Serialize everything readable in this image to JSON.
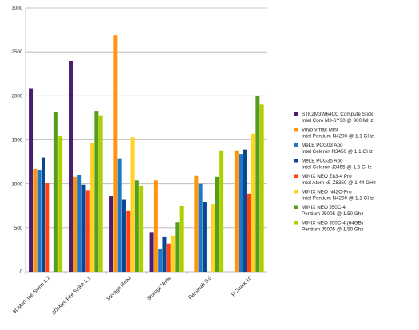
{
  "chart_data": {
    "type": "bar",
    "title": "",
    "xlabel": "",
    "ylabel": "",
    "ylim": [
      0,
      3000
    ],
    "yticks": [
      0,
      500,
      1000,
      1500,
      2000,
      2500,
      3000
    ],
    "grid": true,
    "legend_position": "right",
    "categories": [
      "3DMark Ice Storm 1.2",
      "3DMark Fire Strike 1.1",
      "Storage Read",
      "Storage Write",
      "Passmak 9.0",
      "PCMark 10"
    ],
    "series": [
      {
        "name": "STK2M3W64CC Compute Stick",
        "subtitle": "Intel Core M3-6Y30 @ 900 MHz",
        "color": "#4b1f6f",
        "values": [
          2080,
          2400,
          860,
          450,
          null,
          null
        ]
      },
      {
        "name": "Voyo Vmac Mini",
        "subtitle": "Intel Pentium N4200 @ 1.1 GHz",
        "color": "#ff950e",
        "values": [
          1170,
          1080,
          2690,
          1040,
          1090,
          1380
        ]
      },
      {
        "name": "MeLE PCG03 Apo",
        "subtitle": "Intel Celeron N3450 @ 1.1 GHz",
        "color": "#1e78c8",
        "values": [
          1160,
          1100,
          1290,
          260,
          1000,
          1340
        ]
      },
      {
        "name": "MeLE PCG35 Apo",
        "subtitle": "Intel Celeron J3455 @ 1.5 GHz",
        "color": "#0b4690",
        "values": [
          1300,
          990,
          820,
          400,
          790,
          1390
        ]
      },
      {
        "name": "MINIX NEO Z83-4 Pro",
        "subtitle": "Intel Atom x5-Z8350 @ 1.44 GHz",
        "color": "#ff420e",
        "values": [
          1010,
          930,
          690,
          320,
          null,
          890
        ]
      },
      {
        "name": "MINIX NEO N42C-Pro",
        "subtitle": "Intel Pentium N4200 @ 1.1 GHz",
        "color": "#ffd320",
        "values": [
          null,
          1460,
          1530,
          410,
          770,
          1570
        ]
      },
      {
        "name": "MINIX NEO J50C-4",
        "subtitle": "Pentium J5005 @ 1.50 Ghz",
        "color": "#579d1c",
        "values": [
          1820,
          1830,
          1040,
          560,
          1080,
          2000
        ]
      },
      {
        "name": "MINIX NEO J50C-4 (64GB)",
        "subtitle": "Pentium J5005 @ 1.50 Ghz",
        "color": "#aecf00",
        "values": [
          1540,
          1780,
          980,
          750,
          1380,
          1900
        ]
      }
    ]
  }
}
